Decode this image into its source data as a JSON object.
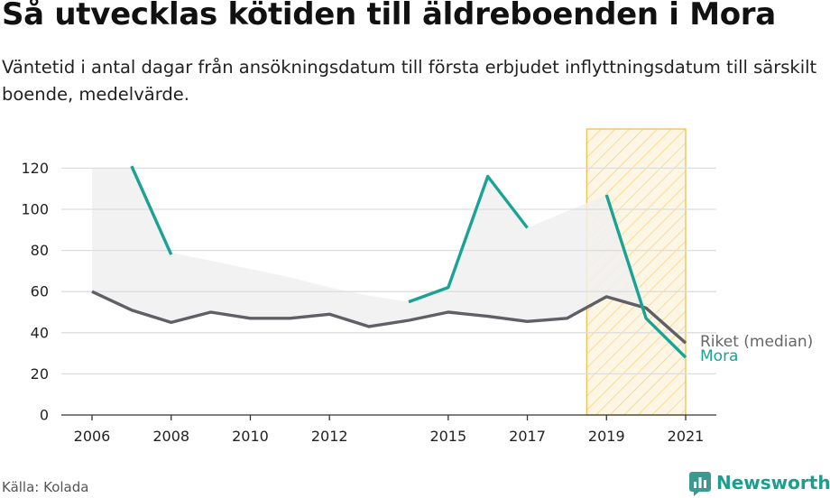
{
  "title": "Så utvecklas kötiden till äldreboenden i Mora",
  "subtitle": "Väntetid i antal dagar från ansökningsdatum till första erbjudet inflyttningsdatum till särskilt boende, medelvärde.",
  "source": "Källa: Kolada",
  "brand": "Newsworthy",
  "colors": {
    "mora": "#1aa394",
    "riket": "#5f5f66",
    "range_fill": "#f0f0f0",
    "highlight": "#f5c04a",
    "grid": "#dddddd"
  },
  "chart_data": {
    "type": "line",
    "x": [
      2006,
      2007,
      2008,
      2009,
      2010,
      2011,
      2012,
      2013,
      2014,
      2015,
      2016,
      2017,
      2018,
      2019,
      2020,
      2021
    ],
    "xticks": [
      "2006",
      "2008",
      "2010",
      "2012",
      "2015",
      "2017",
      "2019",
      "2021"
    ],
    "yticks": [
      "0",
      "20",
      "40",
      "60",
      "80",
      "100",
      "120"
    ],
    "ylim": [
      0,
      125
    ],
    "grid": true,
    "series": [
      {
        "name": "Riket (median)",
        "values": [
          60,
          51,
          45,
          50,
          47,
          47,
          49,
          43,
          46,
          50,
          48,
          45.5,
          47,
          57.5,
          52,
          35
        ]
      },
      {
        "name": "Mora",
        "values": [
          null,
          121,
          78,
          null,
          null,
          null,
          null,
          null,
          55,
          62,
          116,
          91,
          null,
          107,
          47,
          28
        ]
      }
    ],
    "range_band": {
      "upper": [
        120,
        120,
        79,
        75,
        71,
        67,
        62,
        58,
        55,
        62,
        116,
        91,
        99,
        107,
        52,
        35
      ]
    },
    "highlight_span": [
      2018.5,
      2021
    ]
  }
}
